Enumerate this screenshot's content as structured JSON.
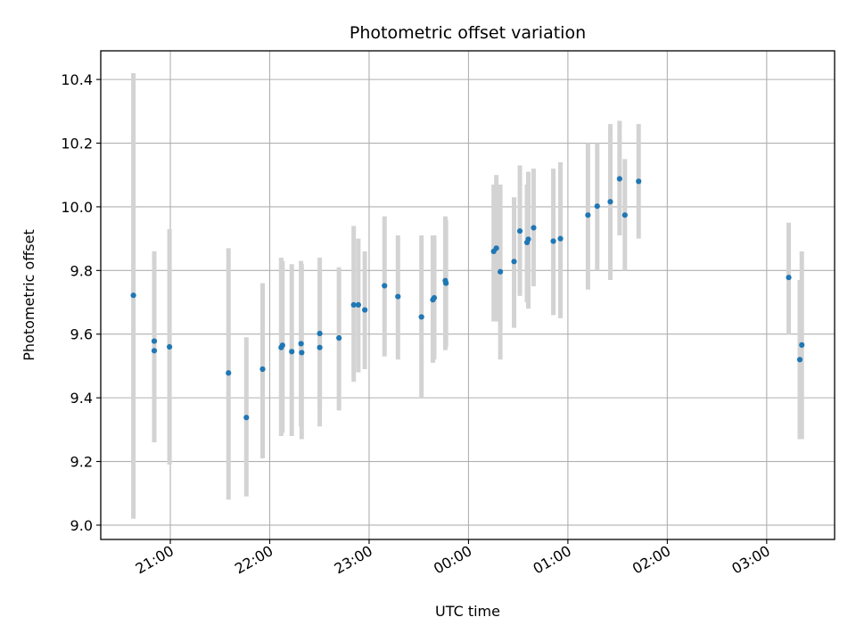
{
  "chart_data": {
    "type": "scatter",
    "title": "Photometric offset variation",
    "xlabel": "UTC time",
    "ylabel": "Photometric offset",
    "x_unit": "minutes from 21:00 UTC",
    "xlim": [
      -42,
      401
    ],
    "ylim": [
      8.955,
      10.49
    ],
    "grid": true,
    "x_ticks": [
      {
        "label": "21:00",
        "value": 0
      },
      {
        "label": "22:00",
        "value": 60
      },
      {
        "label": "23:00",
        "value": 120
      },
      {
        "label": "00:00",
        "value": 180
      },
      {
        "label": "01:00",
        "value": 240
      },
      {
        "label": "02:00",
        "value": 300
      },
      {
        "label": "03:00",
        "value": 360
      }
    ],
    "y_ticks": [
      {
        "label": "9.0",
        "value": 9.0
      },
      {
        "label": "9.2",
        "value": 9.2
      },
      {
        "label": "9.4",
        "value": 9.4
      },
      {
        "label": "9.6",
        "value": 9.6
      },
      {
        "label": "9.8",
        "value": 9.8
      },
      {
        "label": "10.0",
        "value": 10.0
      },
      {
        "label": "10.2",
        "value": 10.2
      },
      {
        "label": "10.4",
        "value": 10.4
      }
    ],
    "marker_color": "#1f77b4",
    "errorbar_color": "#d3d3d3",
    "points": [
      {
        "x": -22.3,
        "y": 9.722,
        "lo": 9.02,
        "hi": 10.42
      },
      {
        "x": -9.7,
        "y": 9.548,
        "lo": 9.26,
        "hi": 9.86
      },
      {
        "x": -9.7,
        "y": 9.578,
        "lo": 9.29,
        "hi": 9.86
      },
      {
        "x": -0.5,
        "y": 9.56,
        "lo": 9.19,
        "hi": 9.93
      },
      {
        "x": 35.1,
        "y": 9.478,
        "lo": 9.08,
        "hi": 9.87
      },
      {
        "x": 45.9,
        "y": 9.338,
        "lo": 9.09,
        "hi": 9.59
      },
      {
        "x": 55.7,
        "y": 9.49,
        "lo": 9.21,
        "hi": 9.76
      },
      {
        "x": 66.9,
        "y": 9.558,
        "lo": 9.28,
        "hi": 9.84
      },
      {
        "x": 67.7,
        "y": 9.565,
        "lo": 9.29,
        "hi": 9.83
      },
      {
        "x": 73.3,
        "y": 9.545,
        "lo": 9.28,
        "hi": 9.82
      },
      {
        "x": 78.9,
        "y": 9.57,
        "lo": 9.31,
        "hi": 9.83
      },
      {
        "x": 79.3,
        "y": 9.542,
        "lo": 9.27,
        "hi": 9.82
      },
      {
        "x": 90.2,
        "y": 9.602,
        "lo": 9.37,
        "hi": 9.84
      },
      {
        "x": 90.2,
        "y": 9.558,
        "lo": 9.31,
        "hi": 9.8
      },
      {
        "x": 101.8,
        "y": 9.588,
        "lo": 9.36,
        "hi": 9.81
      },
      {
        "x": 110.7,
        "y": 9.692,
        "lo": 9.45,
        "hi": 9.94
      },
      {
        "x": 113.5,
        "y": 9.692,
        "lo": 9.48,
        "hi": 9.9
      },
      {
        "x": 117.4,
        "y": 9.676,
        "lo": 9.49,
        "hi": 9.86
      },
      {
        "x": 129.3,
        "y": 9.752,
        "lo": 9.53,
        "hi": 9.97
      },
      {
        "x": 137.4,
        "y": 9.718,
        "lo": 9.52,
        "hi": 9.91
      },
      {
        "x": 151.6,
        "y": 9.654,
        "lo": 9.4,
        "hi": 9.91
      },
      {
        "x": 158.5,
        "y": 9.708,
        "lo": 9.51,
        "hi": 9.91
      },
      {
        "x": 159.3,
        "y": 9.714,
        "lo": 9.52,
        "hi": 9.91
      },
      {
        "x": 166.0,
        "y": 9.768,
        "lo": 9.55,
        "hi": 9.97
      },
      {
        "x": 166.4,
        "y": 9.76,
        "lo": 9.56,
        "hi": 9.96
      },
      {
        "x": 195.2,
        "y": 9.86,
        "lo": 9.64,
        "hi": 10.07
      },
      {
        "x": 196.8,
        "y": 9.87,
        "lo": 9.64,
        "hi": 10.1
      },
      {
        "x": 199.2,
        "y": 9.796,
        "lo": 9.52,
        "hi": 10.07
      },
      {
        "x": 207.5,
        "y": 9.828,
        "lo": 9.62,
        "hi": 10.03
      },
      {
        "x": 211.0,
        "y": 9.924,
        "lo": 9.72,
        "hi": 10.13
      },
      {
        "x": 215.3,
        "y": 9.888,
        "lo": 9.7,
        "hi": 10.07
      },
      {
        "x": 216.1,
        "y": 9.898,
        "lo": 9.68,
        "hi": 10.11
      },
      {
        "x": 219.3,
        "y": 9.934,
        "lo": 9.75,
        "hi": 10.12
      },
      {
        "x": 231.2,
        "y": 9.892,
        "lo": 9.66,
        "hi": 10.12
      },
      {
        "x": 235.5,
        "y": 9.9,
        "lo": 9.65,
        "hi": 10.14
      },
      {
        "x": 252.1,
        "y": 9.974,
        "lo": 9.74,
        "hi": 10.2
      },
      {
        "x": 257.7,
        "y": 10.002,
        "lo": 9.8,
        "hi": 10.2
      },
      {
        "x": 265.6,
        "y": 10.016,
        "lo": 9.77,
        "hi": 10.26
      },
      {
        "x": 271.2,
        "y": 10.088,
        "lo": 9.91,
        "hi": 10.27
      },
      {
        "x": 274.4,
        "y": 9.974,
        "lo": 9.8,
        "hi": 10.15
      },
      {
        "x": 282.7,
        "y": 10.08,
        "lo": 9.9,
        "hi": 10.26
      },
      {
        "x": 373.3,
        "y": 9.778,
        "lo": 9.6,
        "hi": 9.95
      },
      {
        "x": 380.0,
        "y": 9.52,
        "lo": 9.27,
        "hi": 9.77
      },
      {
        "x": 381.2,
        "y": 9.566,
        "lo": 9.27,
        "hi": 9.86
      }
    ]
  }
}
